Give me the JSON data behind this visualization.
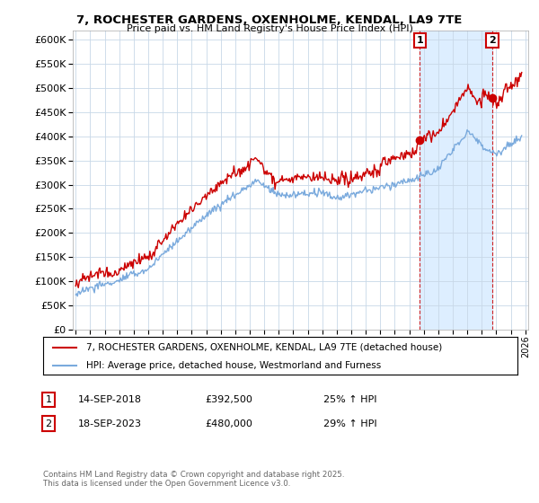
{
  "title": "7, ROCHESTER GARDENS, OXENHOLME, KENDAL, LA9 7TE",
  "subtitle": "Price paid vs. HM Land Registry's House Price Index (HPI)",
  "legend_line1": "7, ROCHESTER GARDENS, OXENHOLME, KENDAL, LA9 7TE (detached house)",
  "legend_line2": "HPI: Average price, detached house, Westmorland and Furness",
  "annotation1_label": "1",
  "annotation1_date": "14-SEP-2018",
  "annotation1_price": "£392,500",
  "annotation1_hpi": "25% ↑ HPI",
  "annotation2_label": "2",
  "annotation2_date": "18-SEP-2023",
  "annotation2_price": "£480,000",
  "annotation2_hpi": "29% ↑ HPI",
  "copyright": "Contains HM Land Registry data © Crown copyright and database right 2025.\nThis data is licensed under the Open Government Licence v3.0.",
  "red_color": "#cc0000",
  "blue_color": "#7aaadd",
  "shade_color": "#ddeeff",
  "background_color": "#ffffff",
  "grid_color": "#c8d8e8",
  "ylim": [
    0,
    620000
  ],
  "ytick_step": 50000,
  "x_start_year": 1995,
  "x_end_year": 2026,
  "sale1_year": 2018.72,
  "sale1_price": 392500,
  "sale2_year": 2023.72,
  "sale2_price": 480000
}
